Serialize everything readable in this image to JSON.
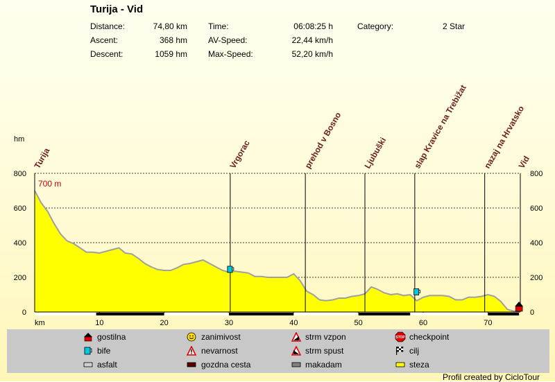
{
  "title": "Turija - Vid",
  "stats": {
    "distance_label": "Distance:",
    "distance_value": "74,80 km",
    "ascent_label": "Ascent:",
    "ascent_value": "368 hm",
    "descent_label": "Descent:",
    "descent_value": "1059 hm",
    "time_label": "Time:",
    "time_value": "06:08:25 h",
    "avspeed_label": "AV-Speed:",
    "avspeed_value": "22,44 km/h",
    "maxspeed_label": "Max-Speed:",
    "maxspeed_value": "52,20 km/h",
    "category_label": "Category:",
    "category_value": "2 Star"
  },
  "chart_data": {
    "type": "area",
    "ylabel": "hm",
    "xlabel": "km",
    "xlim": [
      0,
      75
    ],
    "ylim": [
      0,
      800
    ],
    "x_ticks": [
      10,
      20,
      30,
      40,
      50,
      60,
      70
    ],
    "y_ticks": [
      0,
      200,
      400,
      600,
      800
    ],
    "start_label": "700 m",
    "profile": {
      "x": [
        0,
        1,
        2,
        3,
        4,
        5,
        6,
        7,
        8,
        9,
        10,
        11,
        12,
        13,
        14,
        15,
        16,
        17,
        18,
        19,
        20,
        21,
        22,
        23,
        24,
        25,
        26,
        27,
        28,
        29,
        30,
        31,
        32,
        33,
        34,
        35,
        36,
        37,
        38,
        39,
        40,
        41,
        42,
        43,
        44,
        45,
        46,
        47,
        48,
        49,
        50,
        51,
        52,
        53,
        54,
        55,
        56,
        57,
        58,
        59,
        60,
        61,
        62,
        63,
        64,
        65,
        66,
        67,
        68,
        69,
        70,
        71,
        72,
        73,
        74,
        74.8
      ],
      "y": [
        700,
        630,
        580,
        510,
        450,
        410,
        395,
        370,
        345,
        345,
        340,
        350,
        360,
        370,
        340,
        335,
        310,
        280,
        260,
        245,
        240,
        240,
        255,
        275,
        280,
        290,
        300,
        280,
        260,
        240,
        230,
        235,
        230,
        225,
        205,
        205,
        200,
        200,
        200,
        200,
        220,
        180,
        120,
        100,
        70,
        65,
        70,
        80,
        80,
        90,
        95,
        105,
        145,
        130,
        110,
        100,
        105,
        95,
        100,
        65,
        85,
        95,
        95,
        95,
        90,
        70,
        70,
        85,
        85,
        90,
        100,
        90,
        60,
        15,
        5,
        5
      ]
    },
    "waypoints": [
      {
        "km": 0,
        "label": "Turija"
      },
      {
        "km": 30.2,
        "label": "Vrgorac"
      },
      {
        "km": 41.8,
        "label": "prehod v Bosno"
      },
      {
        "km": 51.0,
        "label": "Ljubuški"
      },
      {
        "km": 58.7,
        "label": "slap Kravice na Trebižat"
      },
      {
        "km": 69.5,
        "label": "nazaj na Hrvatsko"
      },
      {
        "km": 74.8,
        "label": "Vid"
      }
    ],
    "icons": [
      {
        "km": 30.2,
        "hm": 240,
        "type": "bife"
      },
      {
        "km": 59.0,
        "hm": 110,
        "type": "bife"
      },
      {
        "km": 74.8,
        "hm": 20,
        "type": "gostilna"
      }
    ],
    "surface_bar": [
      {
        "from": 0,
        "to": 9.5,
        "type": "asfalt"
      },
      {
        "from": 9.5,
        "to": 20,
        "type": "gozdna cesta"
      },
      {
        "from": 20,
        "to": 30,
        "type": "asfalt"
      },
      {
        "from": 30,
        "to": 40,
        "type": "gozdna cesta"
      },
      {
        "from": 40,
        "to": 50,
        "type": "asfalt"
      },
      {
        "from": 50,
        "to": 58,
        "type": "gozdna cesta"
      },
      {
        "from": 58,
        "to": 70,
        "type": "asfalt"
      },
      {
        "from": 70,
        "to": 74.8,
        "type": "gozdna cesta"
      }
    ]
  },
  "legend": {
    "gostilna": "gostilna",
    "bife": "bife",
    "asfalt": "asfalt",
    "zanimivost": "zanimivost",
    "nevarnost": "nevarnost",
    "gozdna_cesta": "gozdna cesta",
    "strm_vzpon": "strm vzpon",
    "strm_spust": "strm spust",
    "makadam": "makadam",
    "checkpoint": "checkpoint",
    "cilj": "cilj",
    "steza": "steza",
    "stop_text": "STOP"
  },
  "footer": "Profil created by CicloTour",
  "colors": {
    "fill": "#ffff00",
    "outline": "#a0a0a0",
    "start_label": "#c00000",
    "waypoint": "#6b2020",
    "legend_bg": "#c8c8c8"
  }
}
